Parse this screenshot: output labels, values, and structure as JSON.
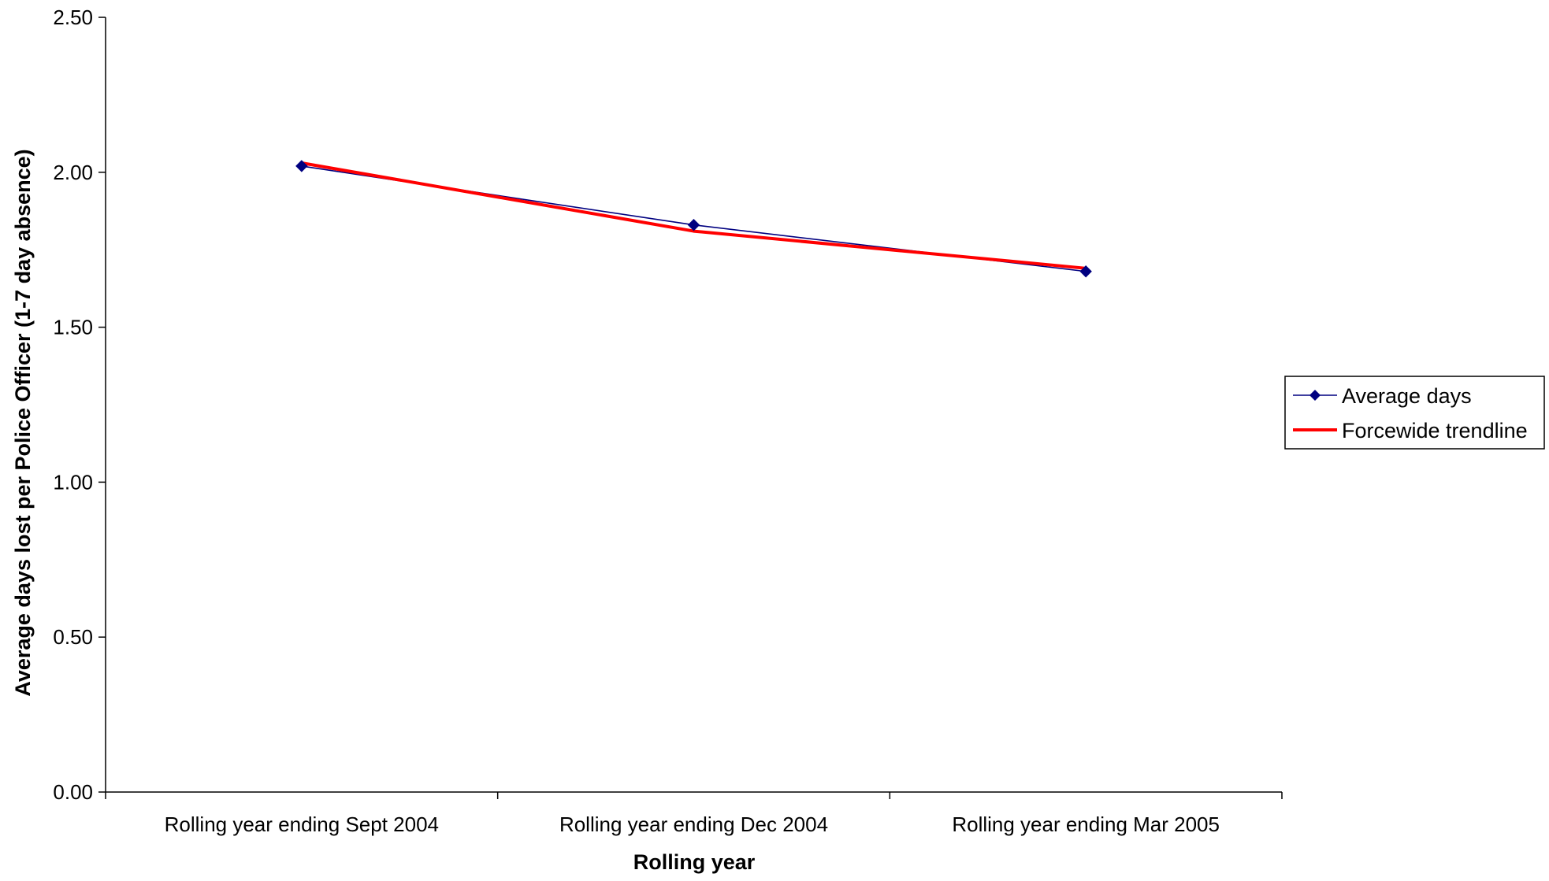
{
  "chart_data": {
    "type": "line",
    "title": "",
    "xlabel": "Rolling year",
    "ylabel": "Average days lost per Police Officer (1-7 day absence)",
    "categories": [
      "Rolling year ending Sept 2004",
      "Rolling year ending Dec 2004",
      "Rolling year ending Mar 2005"
    ],
    "series": [
      {
        "name": "Average days",
        "values": [
          2.02,
          1.83,
          1.68
        ],
        "color": "#000080",
        "marker": "diamond"
      },
      {
        "name": "Forcewide trendline",
        "values": [
          2.03,
          1.81,
          1.69
        ],
        "color": "#ff0000",
        "marker": "none"
      }
    ],
    "ylim": [
      0,
      2.5
    ],
    "y_ticks": [
      "0.00",
      "0.50",
      "1.00",
      "1.50",
      "2.00",
      "2.50"
    ],
    "grid": false,
    "legend_position": "right"
  }
}
